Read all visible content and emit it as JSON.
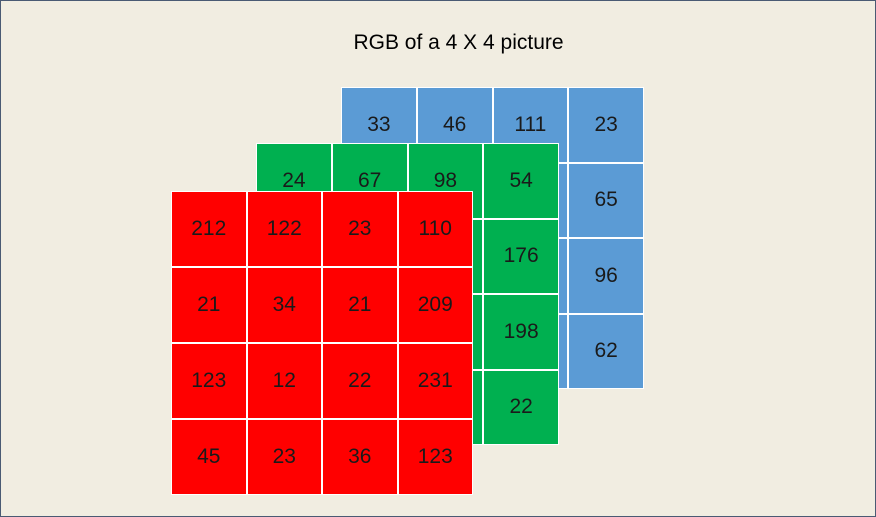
{
  "title": "RGB of a 4 X 4 picture",
  "colors": {
    "background": "#f1ede1",
    "red": "#ff0000",
    "green": "#00b050",
    "blue": "#5b9bd5"
  },
  "channels": [
    {
      "name": "blue",
      "values": [
        [
          "33",
          "46",
          "111",
          "23"
        ],
        [
          "",
          "",
          "",
          "65"
        ],
        [
          "",
          "",
          "",
          "96"
        ],
        [
          "",
          "",
          "",
          "62"
        ]
      ]
    },
    {
      "name": "green",
      "values": [
        [
          "24",
          "67",
          "98",
          "54"
        ],
        [
          "",
          "",
          "",
          "176"
        ],
        [
          "",
          "",
          "",
          "198"
        ],
        [
          "",
          "",
          "",
          "22"
        ]
      ]
    },
    {
      "name": "red",
      "values": [
        [
          "212",
          "122",
          "23",
          "110"
        ],
        [
          "21",
          "34",
          "21",
          "209"
        ],
        [
          "123",
          "12",
          "22",
          "231"
        ],
        [
          "45",
          "23",
          "36",
          "123"
        ]
      ]
    }
  ]
}
